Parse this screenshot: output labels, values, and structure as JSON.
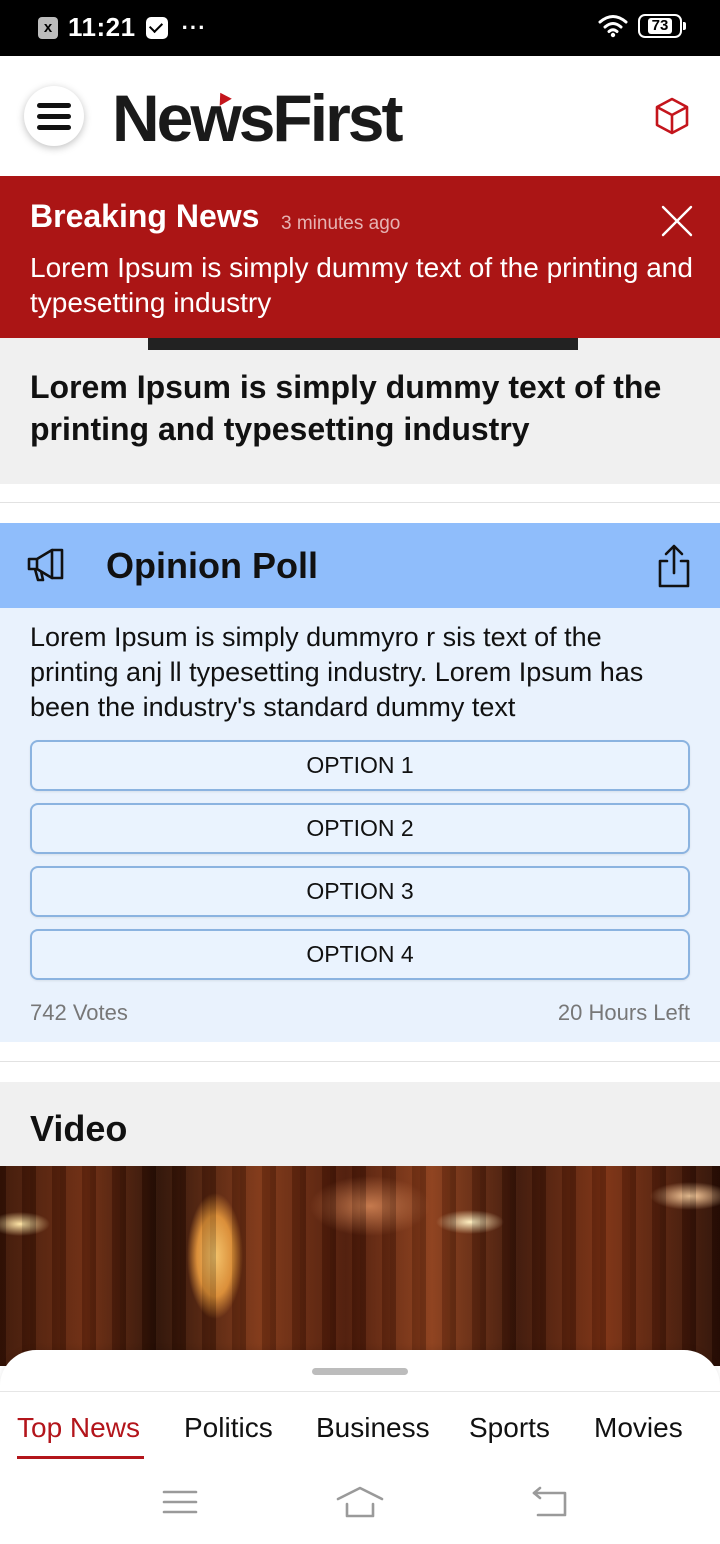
{
  "status_bar": {
    "notif_badge": "x",
    "time": "11:21",
    "more": "···",
    "battery": "73"
  },
  "header": {
    "logo": "NewsFirst",
    "menu_icon": "hamburger-menu-icon",
    "right_icon": "cube-icon"
  },
  "breaking": {
    "title": "Breaking News",
    "time_ago": "3 minutes ago",
    "text": "Lorem Ipsum is simply dummy text of the printing and typesetting industry",
    "close_icon": "close-icon"
  },
  "headline": {
    "title": "Lorem Ipsum is simply dummy text of the printing and typesetting industry"
  },
  "poll": {
    "title": "Opinion Poll",
    "question": "Lorem Ipsum is simply dummyro r sis text of the printing anj ll typesetting industry. Lorem Ipsum has been the industry's standard dummy text",
    "options": [
      "OPTION 1",
      "OPTION 2",
      "OPTION 3",
      "OPTION 4"
    ],
    "votes": "742 Votes",
    "time_left": "20 Hours Left",
    "icon": "megaphone-icon",
    "share_icon": "share-icon"
  },
  "video": {
    "title": "Video"
  },
  "bottom_tabs": {
    "items": [
      "Top News",
      "Politics",
      "Business",
      "Sports",
      "Movies"
    ],
    "active": "Top News"
  },
  "colors": {
    "brand_red": "#ab1515",
    "poll_header": "#8fbdfb",
    "poll_body": "#e9f2fd",
    "active_tab": "#b3151b"
  }
}
